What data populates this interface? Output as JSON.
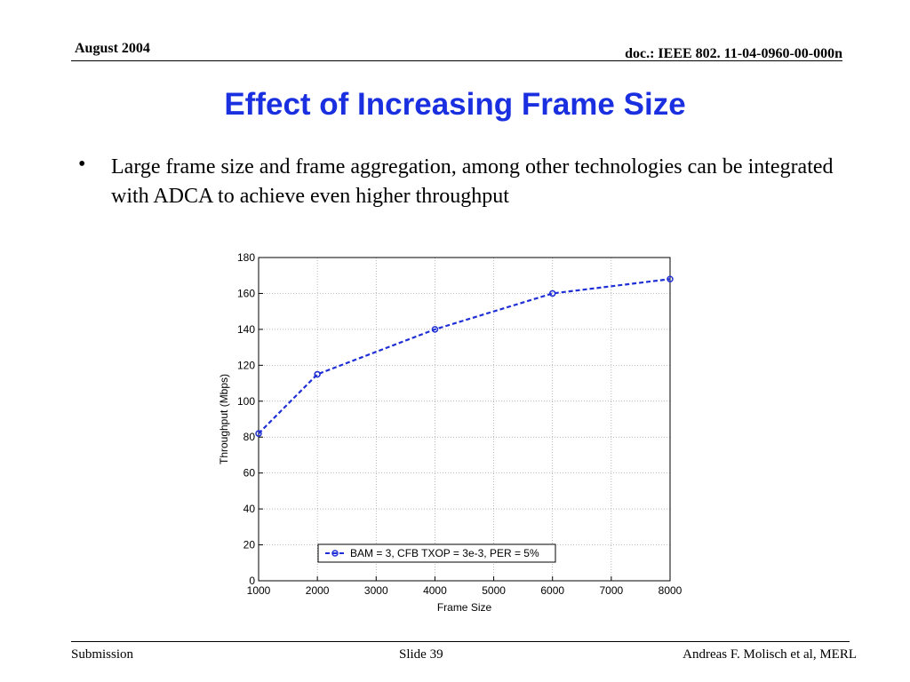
{
  "header": {
    "date": "August 2004",
    "doc_id": "doc.: IEEE 802. 11-04-0960-00-000n"
  },
  "slide": {
    "title": "Effect of Increasing Frame Size",
    "bullet_char": "•",
    "bullet_text": "Large frame size and frame aggregation, among other technologies can be integrated with ADCA to achieve even higher throughput"
  },
  "footer": {
    "left": "Submission",
    "center": "Slide 39",
    "right": "Andreas F. Molisch et al, MERL"
  },
  "colors": {
    "title": "#1a30e0",
    "series": "#1f2fd6"
  },
  "chart_data": {
    "type": "line",
    "title": "",
    "xlabel": "Frame Size",
    "ylabel": "Throughput (Mbps)",
    "xlim": [
      1000,
      8000
    ],
    "ylim": [
      0,
      180
    ],
    "xticks": [
      1000,
      2000,
      3000,
      4000,
      5000,
      6000,
      7000,
      8000
    ],
    "yticks": [
      0,
      20,
      40,
      60,
      80,
      100,
      120,
      140,
      160,
      180
    ],
    "grid": true,
    "legend_position": "bottom-center",
    "series": [
      {
        "name": "BAM = 3, CFB TXOP = 3e-3, PER = 5%",
        "x": [
          1000,
          2000,
          4000,
          6000,
          8000
        ],
        "y": [
          82,
          115,
          140,
          160,
          168
        ]
      }
    ]
  }
}
